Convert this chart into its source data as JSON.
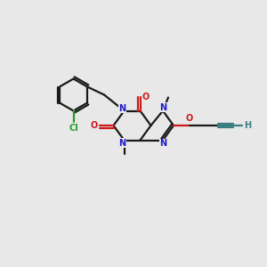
{
  "bg_color": "#e8e8e8",
  "bond_color": "#1a1a1a",
  "N_color": "#1a1acc",
  "O_color": "#cc1a1a",
  "Cl_color": "#2a9a2a",
  "C_triple_color": "#3a8080",
  "line_width": 1.6,
  "fig_size": [
    3.0,
    3.0
  ],
  "dpi": 100,
  "xlim": [
    0,
    10
  ],
  "ylim": [
    0,
    10
  ]
}
